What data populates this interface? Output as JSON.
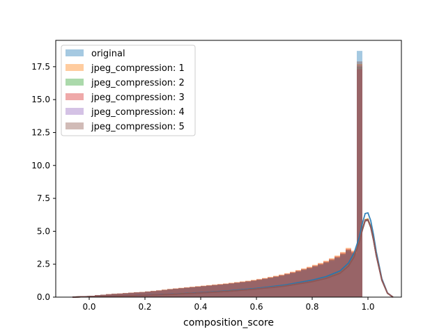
{
  "chart_data": {
    "type": "histogram",
    "title": "",
    "xlabel": "composition_score",
    "ylabel": "",
    "xlim": [
      -0.12,
      1.12
    ],
    "ylim": [
      0,
      19.5
    ],
    "xticks": [
      "0.0",
      "0.2",
      "0.4",
      "0.6",
      "0.8",
      "1.0"
    ],
    "xtick_values": [
      0.0,
      0.2,
      0.4,
      0.6,
      0.8,
      1.0
    ],
    "yticks": [
      "0.0",
      "2.5",
      "5.0",
      "7.5",
      "10.0",
      "12.5",
      "15.0",
      "17.5"
    ],
    "ytick_values": [
      0.0,
      2.5,
      5.0,
      7.5,
      10.0,
      12.5,
      15.0,
      17.5
    ],
    "grid": false,
    "legend_position": "top-left",
    "series": [
      {
        "name": "original",
        "color": "#1f77b4"
      },
      {
        "name": "jpeg_compression: 1",
        "color": "#ff7f0e"
      },
      {
        "name": "jpeg_compression: 2",
        "color": "#2ca02c"
      },
      {
        "name": "jpeg_compression: 3",
        "color": "#d62728"
      },
      {
        "name": "jpeg_compression: 4",
        "color": "#9467bd"
      },
      {
        "name": "jpeg_compression: 5",
        "color": "#8c564b"
      }
    ],
    "bins": {
      "edges_start": 0.0,
      "bin_width": 0.02,
      "count": 50,
      "heights_series5": [
        0.1,
        0.15,
        0.18,
        0.22,
        0.25,
        0.27,
        0.3,
        0.33,
        0.36,
        0.38,
        0.42,
        0.46,
        0.5,
        0.55,
        0.6,
        0.64,
        0.68,
        0.72,
        0.76,
        0.8,
        0.84,
        0.88,
        0.92,
        0.96,
        1.0,
        1.05,
        1.1,
        1.15,
        1.2,
        1.26,
        1.33,
        1.4,
        1.48,
        1.56,
        1.65,
        1.75,
        1.86,
        1.98,
        2.1,
        2.22,
        2.36,
        2.5,
        2.66,
        2.84,
        3.04,
        3.3,
        3.6,
        3.4,
        17.9,
        0.0
      ],
      "peak_heights": [
        18.7,
        17.7,
        17.5,
        17.3,
        17.6,
        17.9
      ]
    },
    "kde_series5": {
      "x": [
        -0.06,
        0.0,
        0.1,
        0.2,
        0.3,
        0.4,
        0.5,
        0.6,
        0.7,
        0.8,
        0.85,
        0.9,
        0.93,
        0.95,
        0.97,
        0.98,
        0.99,
        1.0,
        1.01,
        1.02,
        1.03,
        1.05,
        1.07,
        1.09
      ],
      "y": [
        0.0,
        0.04,
        0.09,
        0.15,
        0.22,
        0.32,
        0.45,
        0.62,
        0.85,
        1.2,
        1.45,
        1.85,
        2.4,
        3.1,
        4.3,
        5.2,
        5.9,
        5.95,
        5.4,
        4.4,
        3.2,
        1.3,
        0.3,
        0.0
      ]
    },
    "kde_peak_original": 6.4
  }
}
